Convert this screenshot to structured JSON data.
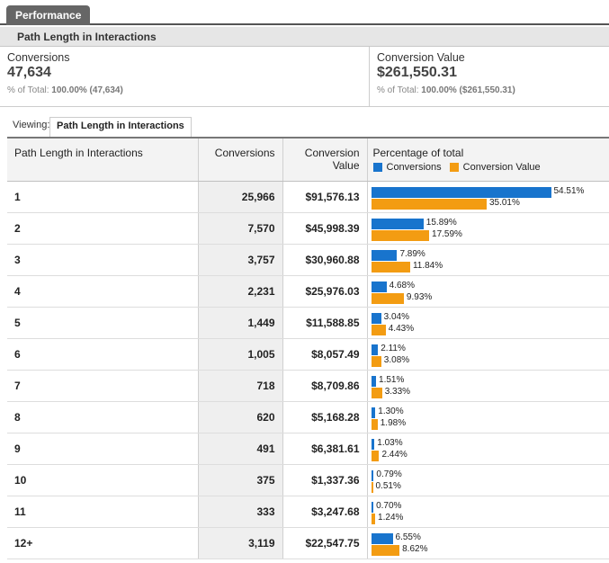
{
  "tab": {
    "label": "Performance"
  },
  "subheader": {
    "title": "Path Length in Interactions"
  },
  "summary": {
    "conversions": {
      "label": "Conversions",
      "value": "47,634",
      "pct_prefix": "% of Total: ",
      "pct_value": "100.00% (47,634)"
    },
    "conversion_value": {
      "label": "Conversion Value",
      "value": "$261,550.31",
      "pct_prefix": "% of Total: ",
      "pct_value": "100.00% ($261,550.31)"
    }
  },
  "viewing": {
    "label": "Viewing:",
    "value": "Path Length in Interactions"
  },
  "table": {
    "headers": {
      "path": "Path Length in Interactions",
      "conversions": "Conversions",
      "conv_value_line1": "Conversion",
      "conv_value_line2": "Value",
      "pct": "Percentage of total"
    },
    "legend": {
      "conversions": "Conversions",
      "conversion_value": "Conversion Value"
    },
    "colors": {
      "conversions": "#1874cd",
      "conversion_value": "#f39c12"
    },
    "rows": [
      {
        "path": "1",
        "conversions": "25,966",
        "value": "$91,576.13",
        "pct_conv": 54.51,
        "pct_value": 35.01,
        "pct_conv_label": "54.51%",
        "pct_value_label": "35.01%"
      },
      {
        "path": "2",
        "conversions": "7,570",
        "value": "$45,998.39",
        "pct_conv": 15.89,
        "pct_value": 17.59,
        "pct_conv_label": "15.89%",
        "pct_value_label": "17.59%"
      },
      {
        "path": "3",
        "conversions": "3,757",
        "value": "$30,960.88",
        "pct_conv": 7.89,
        "pct_value": 11.84,
        "pct_conv_label": "7.89%",
        "pct_value_label": "11.84%"
      },
      {
        "path": "4",
        "conversions": "2,231",
        "value": "$25,976.03",
        "pct_conv": 4.68,
        "pct_value": 9.93,
        "pct_conv_label": "4.68%",
        "pct_value_label": "9.93%"
      },
      {
        "path": "5",
        "conversions": "1,449",
        "value": "$11,588.85",
        "pct_conv": 3.04,
        "pct_value": 4.43,
        "pct_conv_label": "3.04%",
        "pct_value_label": "4.43%"
      },
      {
        "path": "6",
        "conversions": "1,005",
        "value": "$8,057.49",
        "pct_conv": 2.11,
        "pct_value": 3.08,
        "pct_conv_label": "2.11%",
        "pct_value_label": "3.08%"
      },
      {
        "path": "7",
        "conversions": "718",
        "value": "$8,709.86",
        "pct_conv": 1.51,
        "pct_value": 3.33,
        "pct_conv_label": "1.51%",
        "pct_value_label": "3.33%"
      },
      {
        "path": "8",
        "conversions": "620",
        "value": "$5,168.28",
        "pct_conv": 1.3,
        "pct_value": 1.98,
        "pct_conv_label": "1.30%",
        "pct_value_label": "1.98%"
      },
      {
        "path": "9",
        "conversions": "491",
        "value": "$6,381.61",
        "pct_conv": 1.03,
        "pct_value": 2.44,
        "pct_conv_label": "1.03%",
        "pct_value_label": "2.44%"
      },
      {
        "path": "10",
        "conversions": "375",
        "value": "$1,337.36",
        "pct_conv": 0.79,
        "pct_value": 0.51,
        "pct_conv_label": "0.79%",
        "pct_value_label": "0.51%"
      },
      {
        "path": "11",
        "conversions": "333",
        "value": "$3,247.68",
        "pct_conv": 0.7,
        "pct_value": 1.24,
        "pct_conv_label": "0.70%",
        "pct_value_label": "1.24%"
      },
      {
        "path": "12+",
        "conversions": "3,119",
        "value": "$22,547.75",
        "pct_conv": 6.55,
        "pct_value": 8.62,
        "pct_conv_label": "6.55%",
        "pct_value_label": "8.62%"
      }
    ]
  }
}
